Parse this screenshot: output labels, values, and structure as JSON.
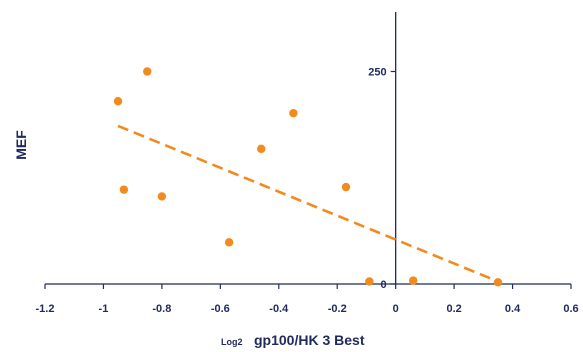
{
  "chart_data": {
    "type": "scatter",
    "title": "",
    "xlabel_prefix": "Log2",
    "xlabel": "gp100/HK 3 Best",
    "ylabel": "MEF",
    "xlim": [
      -1.2,
      0.6
    ],
    "ylim": [
      0,
      320
    ],
    "x_ticks": [
      -1.2,
      -1,
      -0.8,
      -0.6,
      -0.4,
      -0.2,
      0,
      0.2,
      0.4,
      0.6
    ],
    "x_tick_labels": [
      "-1.2",
      "-1",
      "-0.8",
      "-0.6",
      "-0.4",
      "-0.2",
      "0",
      "0.2",
      "0.4",
      "0.6"
    ],
    "y_ticks": [
      0,
      250
    ],
    "y_tick_labels": [
      "0",
      "250"
    ],
    "marker_color": "#f28a1e",
    "line_color": "#f28a1e",
    "axis_color": "#1f2a5a",
    "series": [
      {
        "points": [
          {
            "x": -0.95,
            "y": 215
          },
          {
            "x": -0.85,
            "y": 250
          },
          {
            "x": -0.93,
            "y": 111
          },
          {
            "x": -0.8,
            "y": 103
          },
          {
            "x": -0.57,
            "y": 49
          },
          {
            "x": -0.46,
            "y": 159
          },
          {
            "x": -0.35,
            "y": 201
          },
          {
            "x": -0.17,
            "y": 114
          },
          {
            "x": -0.09,
            "y": 3
          },
          {
            "x": 0.06,
            "y": 4
          },
          {
            "x": 0.35,
            "y": 2
          }
        ]
      }
    ],
    "trendline": {
      "style": "dashed",
      "x": [
        -0.95,
        0.35
      ],
      "y": [
        186,
        3
      ]
    }
  }
}
